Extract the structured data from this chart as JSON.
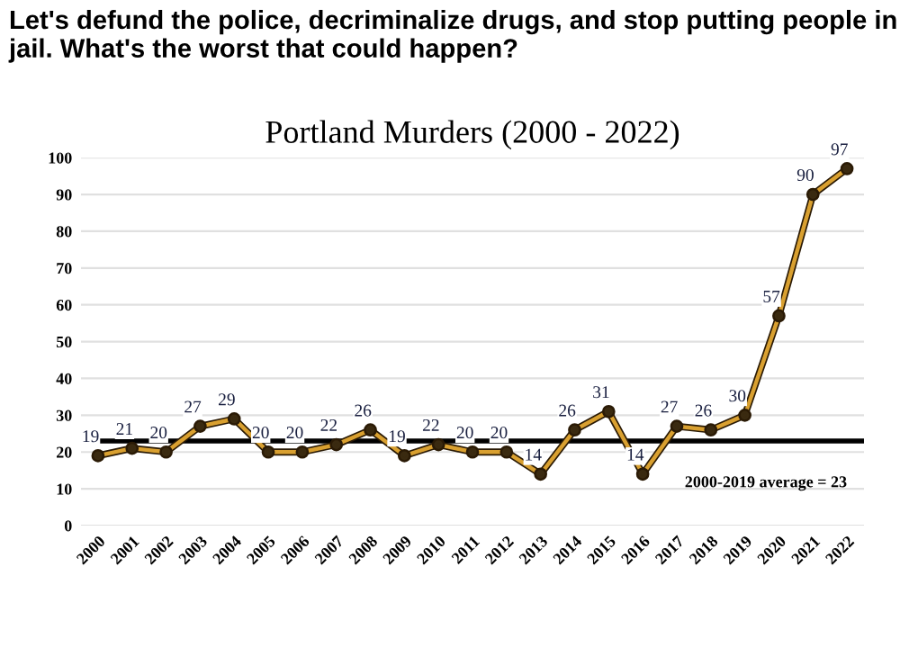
{
  "chart_data": {
    "type": "line",
    "title": "Portland Murders (2000 - 2022)",
    "annotations": [
      "Let's defund the police, decriminalize drugs, and stop putting people in jail. What's the worst that could happen?"
    ],
    "categories": [
      "2000",
      "2001",
      "2002",
      "2003",
      "2004",
      "2005",
      "2006",
      "2007",
      "2008",
      "2009",
      "2010",
      "2011",
      "2012",
      "2013",
      "2014",
      "2015",
      "2016",
      "2017",
      "2018",
      "2019",
      "2020",
      "2021",
      "2022"
    ],
    "series": [
      {
        "color": "#d9a030",
        "values": [
          19,
          21,
          20,
          27,
          29,
          20,
          20,
          22,
          26,
          19,
          22,
          20,
          20,
          14,
          26,
          31,
          14,
          27,
          26,
          30,
          57,
          90,
          97
        ]
      }
    ],
    "ylim": [
      0,
      100
    ],
    "yticks": [
      0,
      10,
      20,
      30,
      40,
      50,
      60,
      70,
      80,
      90,
      100
    ],
    "ref_lines": [
      {
        "axis": "y",
        "value": 23,
        "label": "2000-2019 average = 23",
        "color": "#000000"
      }
    ],
    "data_labels": true,
    "grid": "y",
    "marker": "circle",
    "line_style": "solid"
  }
}
